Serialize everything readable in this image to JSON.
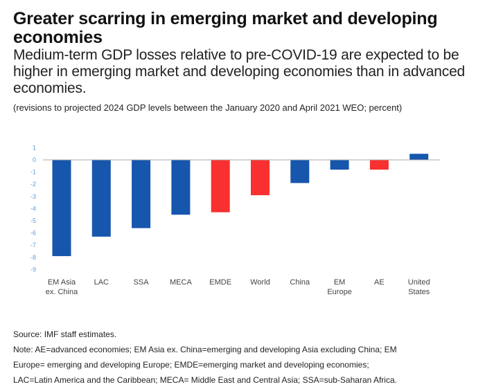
{
  "header": {
    "title": "Greater scarring in emerging market and developing economies",
    "subtitle": "Medium-term GDP losses relative to pre-COVID-19 are expected to be higher in emerging market and developing economies than in advanced economies.",
    "units": "(revisions to projected 2024 GDP levels between the January 2020 and April 2021 WEO; percent)"
  },
  "footer": {
    "source": "Source: IMF staff estimates.",
    "note_lines": [
      "Note: AE=advanced economies; EM Asia ex. China=emerging and developing Asia excluding China; EM",
      "Europe= emerging and developing Europe; EMDE=emerging market and developing economies;",
      "LAC=Latin America and the Caribbean; MECA= Middle East and Central Asia; SSA=sub-Saharan Africa."
    ]
  },
  "colors": {
    "blue": "#1656ad",
    "red": "#f8302f",
    "tick": "#5b9bd5",
    "axis": "#aaaaaa"
  },
  "chart_data": {
    "type": "bar",
    "title": "Greater scarring in emerging market and developing economies",
    "xlabel": "",
    "ylabel": "percent",
    "ylim": [
      -9,
      1
    ],
    "yticks": [
      1,
      0,
      -1,
      -2,
      -3,
      -4,
      -5,
      -6,
      -7,
      -8,
      -9
    ],
    "grid": false,
    "legend": "none",
    "categories": [
      [
        "EM Asia",
        "ex. China"
      ],
      [
        "LAC"
      ],
      [
        "SSA"
      ],
      [
        "MECA"
      ],
      [
        "EMDE"
      ],
      [
        "World"
      ],
      [
        "China"
      ],
      [
        "EM",
        "Europe"
      ],
      [
        "AE"
      ],
      [
        "United",
        "States"
      ]
    ],
    "values": [
      -7.9,
      -6.3,
      -5.6,
      -4.5,
      -4.3,
      -2.9,
      -1.9,
      -0.8,
      -0.8,
      0.5
    ],
    "bar_colors": [
      "blue",
      "blue",
      "blue",
      "blue",
      "red",
      "red",
      "blue",
      "blue",
      "red",
      "blue"
    ]
  }
}
